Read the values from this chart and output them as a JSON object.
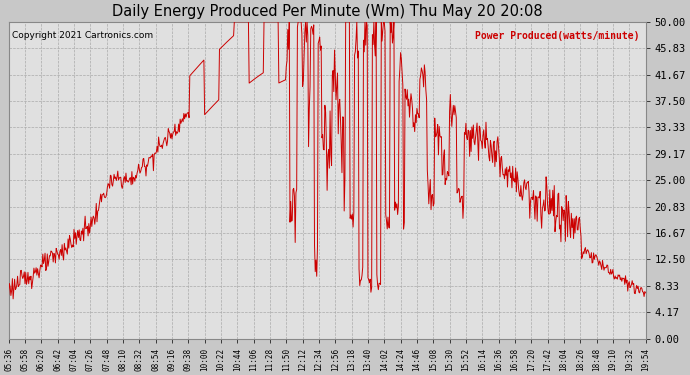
{
  "title": "Daily Energy Produced Per Minute (Wm) Thu May 20 20:08",
  "copyright_text": "Copyright 2021 Cartronics.com",
  "legend_text": "Power Produced(watts/minute)",
  "line_color": "#CC0000",
  "background_color": "#C8C8C8",
  "plot_background": "#E0E0E0",
  "ylim": [
    0,
    50
  ],
  "ytick_values": [
    0.0,
    4.17,
    8.33,
    12.5,
    16.67,
    20.83,
    25.0,
    29.17,
    33.33,
    37.5,
    41.67,
    45.83,
    50.0
  ],
  "xtick_labels": [
    "05:36",
    "05:58",
    "06:20",
    "06:42",
    "07:04",
    "07:26",
    "07:48",
    "08:10",
    "08:32",
    "08:54",
    "09:16",
    "09:38",
    "10:00",
    "10:22",
    "10:44",
    "11:06",
    "11:28",
    "11:50",
    "12:12",
    "12:34",
    "12:56",
    "13:18",
    "13:40",
    "14:02",
    "14:24",
    "14:46",
    "15:08",
    "15:30",
    "15:52",
    "16:14",
    "16:36",
    "16:58",
    "17:20",
    "17:42",
    "18:04",
    "18:26",
    "18:48",
    "19:10",
    "19:32",
    "19:54"
  ],
  "total_minutes": 858
}
